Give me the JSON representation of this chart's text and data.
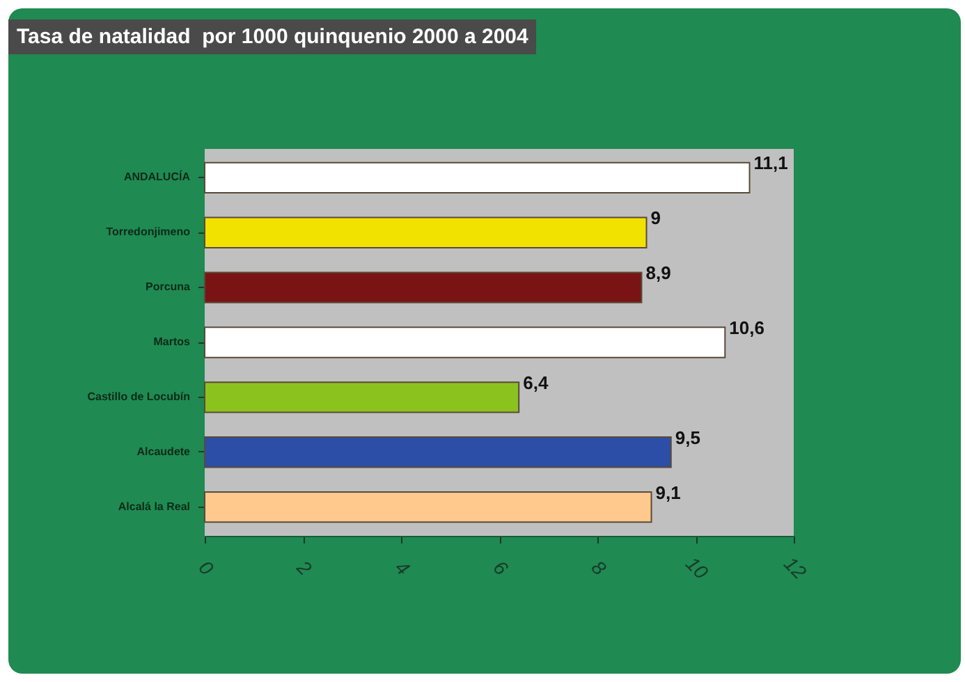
{
  "chart_data": {
    "type": "bar",
    "title": "Tasa de natalidad  por 1000 quinquenio 2000 a 2004",
    "orientation": "horizontal",
    "categories": [
      "ANDALUCÍA",
      "Torredonjimeno",
      "Porcuna",
      "Martos",
      "Castillo de Locubín",
      "Alcaudete",
      "Alcalá la Real"
    ],
    "values": [
      11.1,
      9,
      8.9,
      10.6,
      6.4,
      9.5,
      9.1
    ],
    "colors": [
      "#ffffff",
      "#f2e200",
      "#7a1414",
      "#ffffff",
      "#8cc21e",
      "#2c4ea6",
      "#ffc88c"
    ],
    "value_labels": [
      "11,1",
      "9",
      "8,9",
      "10,6",
      "6,4",
      "9,5",
      "9,1"
    ],
    "xlim": [
      0,
      12
    ],
    "xticks": [
      0,
      2,
      4,
      6,
      8,
      10,
      12
    ],
    "grid": false
  }
}
